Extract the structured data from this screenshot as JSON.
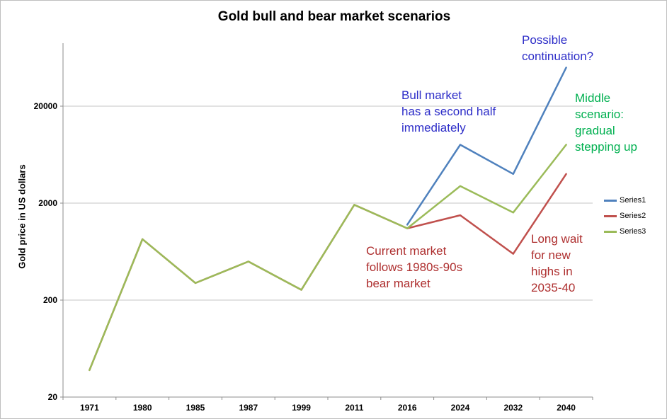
{
  "title": "Gold bull and bear market scenarios",
  "y_axis": {
    "title": "Gold price in US dollars"
  },
  "legend": {
    "items": [
      {
        "label": "Series1",
        "color": "#4F81BD"
      },
      {
        "label": "Series2",
        "color": "#C0504D"
      },
      {
        "label": "Series3",
        "color": "#9BBB59"
      }
    ]
  },
  "annotations": {
    "bull_market": {
      "text": "Bull market\nhas a second half\nimmediately",
      "color": "#2D2DC8"
    },
    "possible_continuation": {
      "text": "Possible\ncontinuation?",
      "color": "#2D2DC8"
    },
    "middle_scenario": {
      "text": "Middle\nscenario:\ngradual\nstepping up",
      "color": "#00B050"
    },
    "current_market": {
      "text": "Current market\nfollows 1980s-90s\nbear market",
      "color": "#AE2F2F"
    },
    "long_wait": {
      "text": "Long wait\nfor new\nhighs in\n2035-40",
      "color": "#AE2F2F"
    }
  },
  "chart_data": {
    "type": "line",
    "title": "Gold bull and bear market scenarios",
    "ylabel": "Gold price in US dollars",
    "y_scale": "log",
    "y_ticks": [
      20,
      200,
      2000,
      20000
    ],
    "ylim": [
      20,
      90000
    ],
    "grid": "horizontal",
    "legend_position": "right",
    "x": [
      "1971",
      "1980",
      "1985",
      "1987",
      "1999",
      "2011",
      "2016",
      "2024",
      "2032",
      "2040"
    ],
    "series": [
      {
        "name": "Series1",
        "color": "#4F81BD",
        "values": [
          null,
          null,
          null,
          null,
          null,
          null,
          1200,
          8000,
          4000,
          50000
        ]
      },
      {
        "name": "Series2",
        "color": "#C0504D",
        "values": [
          38,
          850,
          300,
          500,
          255,
          1920,
          1100,
          1500,
          600,
          4000
        ]
      },
      {
        "name": "Series3",
        "color": "#9BBB59",
        "values": [
          38,
          850,
          300,
          500,
          255,
          1920,
          1100,
          3000,
          1600,
          8000
        ]
      }
    ]
  }
}
